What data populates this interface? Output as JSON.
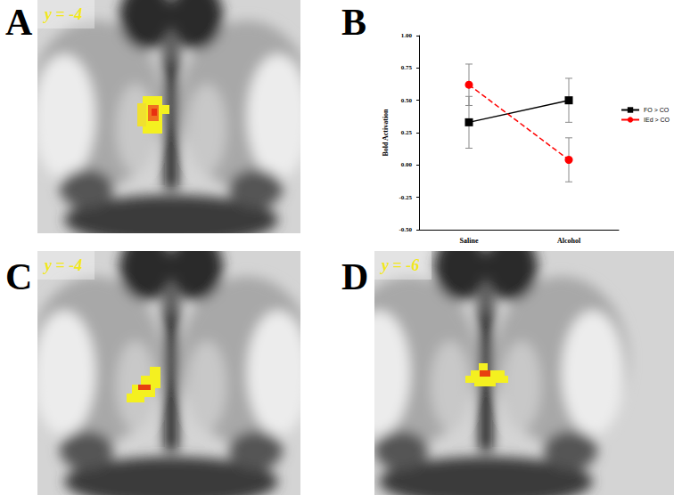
{
  "panels": [
    {
      "letter": "A",
      "slice": "y = -4"
    },
    {
      "letter": "B"
    },
    {
      "letter": "C",
      "slice": "y = -4"
    },
    {
      "letter": "D",
      "slice": "y = -6"
    }
  ],
  "chart_data": {
    "type": "line",
    "categories": [
      "Saline",
      "Alcohol"
    ],
    "y_label": "Bold Activation",
    "ylim": [
      -0.5,
      1
    ],
    "yticks": [
      {
        "value": -0.5,
        "label": "-0.50"
      },
      {
        "value": -0.25,
        "label": "-0.25"
      },
      {
        "value": 0,
        "label": "0.00"
      },
      {
        "value": 0.25,
        "label": "0.25"
      },
      {
        "value": 0.5,
        "label": "0.50"
      },
      {
        "value": 0.75,
        "label": "0.75"
      },
      {
        "value": 1,
        "label": "1.00"
      }
    ],
    "grid": false,
    "legend": "right",
    "series": [
      {
        "name": "FO > CO",
        "color": "#000000",
        "marker": "square",
        "line_style": "solid",
        "values": [
          0.33,
          0.5
        ],
        "errors": [
          0.2,
          0.17
        ]
      },
      {
        "name": "IEd > CO",
        "color": "#ff0000",
        "marker": "circle",
        "line_style": "dashed",
        "values": [
          0.62,
          0.04
        ],
        "errors": [
          0.16,
          0.17
        ]
      }
    ]
  }
}
